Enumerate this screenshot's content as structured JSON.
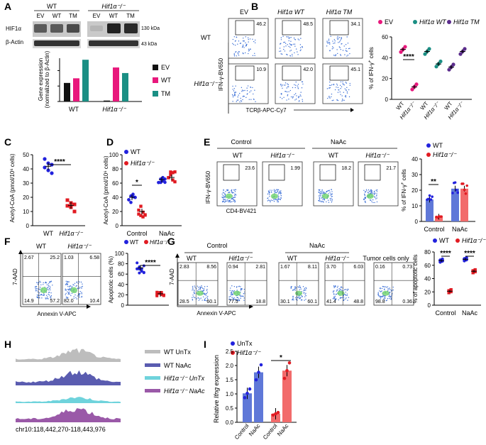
{
  "panels": {
    "A": "A",
    "B": "B",
    "C": "C",
    "D": "D",
    "E": "E",
    "F": "F",
    "G": "G",
    "H": "H",
    "I": "I"
  },
  "panelA": {
    "wt_header": "WT",
    "ko_header": "Hif1α⁻/⁻",
    "lanes": [
      "EV",
      "WT",
      "TM",
      "EV",
      "WT",
      "TM"
    ],
    "blot_labels": [
      "HIF1α",
      "β-Actin"
    ],
    "mw_labels": [
      "130 kDa",
      "43 kDa"
    ]
  },
  "panelB": {
    "cols": [
      "EV",
      "Hif1α WT",
      "Hif1α TM"
    ],
    "rows": [
      "WT",
      "Hif1α⁻/⁻"
    ],
    "gate_values": [
      "46.2",
      "48.5",
      "34.1",
      "10.9",
      "42.0",
      "45.1"
    ],
    "xaxis": "TCRβ-APC-Cy7",
    "yaxis": "IFN-γ-BV650",
    "legend": [
      "EV",
      "Hif1α WT",
      "Hif1α TM"
    ],
    "scatter_ylabel": "% of IFN-γ⁺ cells",
    "yticks": [
      "0",
      "20",
      "40",
      "60"
    ],
    "xcats": [
      "WT",
      "Hif1α⁻/⁻",
      "WT",
      "Hif1α⁻/⁻",
      "WT",
      "Hif1α⁻/⁻"
    ],
    "sig": "****"
  },
  "panelC": {
    "ylabel": "Acetyl-CoA (pmol/10⁶ cells)",
    "yticks": [
      "0",
      "10",
      "20",
      "30",
      "40",
      "50"
    ],
    "xcats": [
      "WT",
      "Hif1α⁻/⁻"
    ],
    "sig": "****"
  },
  "panelD": {
    "ylabel": "Acetyl-CoA (pmol/10⁶ cells)",
    "yticks": [
      "0",
      "20",
      "40",
      "60",
      "80",
      "100"
    ],
    "xcats": [
      "Control",
      "NaAc"
    ],
    "legend": [
      "WT",
      "Hif1α⁻/⁻"
    ],
    "sig": "*"
  },
  "panelE": {
    "groups": [
      "Control",
      "NaAc"
    ],
    "cols": [
      "WT",
      "Hif1α⁻/⁻",
      "WT",
      "Hif1α⁻/⁻"
    ],
    "gate_values": [
      "23.6",
      "1.99",
      "18.2",
      "21.7"
    ],
    "xaxis": "CD4-BV421",
    "yaxis": "IFN-γ-BV650",
    "legend": [
      "WT",
      "Hif1α⁻/⁻"
    ],
    "ylabel": "% of IFN-γ⁺ cells",
    "yticks": [
      "0",
      "10",
      "20",
      "30",
      "40"
    ],
    "xcats": [
      "Control",
      "NaAc"
    ],
    "sig": "**"
  },
  "panelF": {
    "cols": [
      "WT",
      "Hif1α⁻/⁻"
    ],
    "wt_quads": [
      "2.67",
      "25.2",
      "14.9",
      "57.2"
    ],
    "ko_quads": [
      "1.03",
      "6.58",
      "82.0",
      "10.4"
    ],
    "xaxis": "Annexin V-APC",
    "yaxis": "7-AAD",
    "legend": [
      "WT",
      "Hif1α⁻/⁻"
    ],
    "ylabel": "Apoptotic cells (%)",
    "yticks": [
      "0",
      "20",
      "40",
      "60",
      "80",
      "100"
    ],
    "sig": "****"
  },
  "panelG": {
    "groups": [
      "Control",
      "NaAc"
    ],
    "cols": [
      "WT",
      "Hif1α⁻/⁻",
      "WT",
      "Hif1α⁻/⁻",
      "Tumor cells only"
    ],
    "quads": [
      [
        "2.83",
        "8.56",
        "28.5",
        "60.1"
      ],
      [
        "0.94",
        "2.81",
        "77.5",
        "18.8"
      ],
      [
        "1.67",
        "8.11",
        "30.1",
        "60.1"
      ],
      [
        "3.70",
        "6.03",
        "41.4",
        "48.8"
      ],
      [
        "0.16",
        "0.73",
        "98.8",
        "0.36"
      ]
    ],
    "xaxis": "Annexin V-APC",
    "yaxis": "7-AAD",
    "legend": [
      "WT",
      "Hif1α⁻/⁻"
    ],
    "ylabel": "% of apoptotic cells",
    "yticks": [
      "0",
      "20",
      "40",
      "60",
      "80"
    ],
    "xcats": [
      "Control",
      "NaAc"
    ],
    "sig": "****"
  },
  "panelH": {
    "legend": [
      "WT UnTx",
      "WT NaAc",
      "Hif1α⁻/⁻ UnTx",
      "Hif1α⁻/⁻ NaAc"
    ],
    "coord": "chr10:118,442,270-118,443,976"
  },
  "panelI": {
    "legend": [
      "UnTx",
      "Hif1α⁻/⁻"
    ],
    "ylabel": "Relative Ifng expression",
    "yticks": [
      "0.0",
      "0.5",
      "1.0",
      "1.5",
      "2.0",
      "2.5"
    ],
    "xcats": [
      "Control",
      "NaAc",
      "Control",
      "NaAc"
    ],
    "sig": "*"
  },
  "chart_data": [
    {
      "type": "bar",
      "panel": "A",
      "title": "",
      "ylabel": "Gene expression (normalized to β-Actin)",
      "categories": [
        "WT",
        "Hif1α⁻/⁻"
      ],
      "series": [
        {
          "name": "EV",
          "values": [
            0.6,
            0.03
          ]
        },
        {
          "name": "WT",
          "values": [
            0.75,
            1.1
          ]
        },
        {
          "name": "TM",
          "values": [
            1.35,
            0.92
          ]
        }
      ],
      "ylim": [
        0,
        1.4
      ]
    },
    {
      "type": "scatter",
      "panel": "B",
      "ylabel": "% of IFN-γ⁺ cells",
      "categories": [
        "EV WT",
        "EV Hif1α⁻/⁻",
        "Hif1α WT WT",
        "Hif1α WT Hif1α⁻/⁻",
        "Hif1α TM WT",
        "Hif1α TM Hif1α⁻/⁻"
      ],
      "means": [
        48,
        12,
        46,
        34,
        31,
        46
      ],
      "ylim": [
        0,
        60
      ]
    },
    {
      "type": "scatter",
      "panel": "C",
      "ylabel": "Acetyl-CoA (pmol/10⁶ cells)",
      "categories": [
        "WT",
        "Hif1α⁻/⁻"
      ],
      "points": [
        [
          47,
          44,
          43,
          41,
          39,
          37
        ],
        [
          18,
          16,
          15,
          14,
          13,
          10
        ]
      ],
      "ylim": [
        0,
        50
      ]
    },
    {
      "type": "scatter",
      "panel": "D",
      "ylabel": "Acetyl-CoA (pmol/10⁶ cells)",
      "categories": [
        "Control",
        "NaAc"
      ],
      "series": [
        {
          "name": "WT",
          "means": [
            40,
            65
          ]
        },
        {
          "name": "Hif1α⁻/⁻",
          "means": [
            20,
            68
          ]
        }
      ],
      "ylim": [
        0,
        100
      ]
    },
    {
      "type": "bar",
      "panel": "E",
      "ylabel": "% of IFN-γ⁺ cells",
      "categories": [
        "Control",
        "NaAc"
      ],
      "series": [
        {
          "name": "WT",
          "values": [
            14,
            21
          ]
        },
        {
          "name": "Hif1α⁻/⁻",
          "values": [
            3,
            21
          ]
        }
      ],
      "ylim": [
        0,
        40
      ]
    },
    {
      "type": "scatter",
      "panel": "F",
      "ylabel": "Apoptotic cells (%)",
      "categories": [
        "WT",
        "Hif1α⁻/⁻"
      ],
      "means": [
        72,
        22
      ],
      "ylim": [
        0,
        100
      ]
    },
    {
      "type": "scatter",
      "panel": "G",
      "ylabel": "% of apoptotic cells",
      "categories": [
        "Control",
        "NaAc"
      ],
      "series": [
        {
          "name": "WT",
          "means": [
            67,
            69
          ]
        },
        {
          "name": "Hif1α⁻/⁻",
          "means": [
            21,
            51
          ]
        }
      ],
      "ylim": [
        0,
        80
      ]
    },
    {
      "type": "bar",
      "panel": "I",
      "ylabel": "Relative Ifng expression",
      "categories": [
        "Control",
        "NaAc"
      ],
      "series": [
        {
          "name": "UnTx",
          "values": [
            1.02,
            1.76
          ]
        },
        {
          "name": "Hif1α⁻/⁻",
          "values": [
            0.3,
            1.82
          ]
        }
      ],
      "ylim": [
        0,
        2.5
      ]
    }
  ],
  "colors": {
    "black": "#111111",
    "magenta": "#e8187c",
    "teal": "#1a8f84",
    "purple": "#5b2c8c",
    "blue": "#2222dd",
    "red": "#e11b22",
    "lightblue": "#5f78d8",
    "lightred": "#f26b6b"
  }
}
